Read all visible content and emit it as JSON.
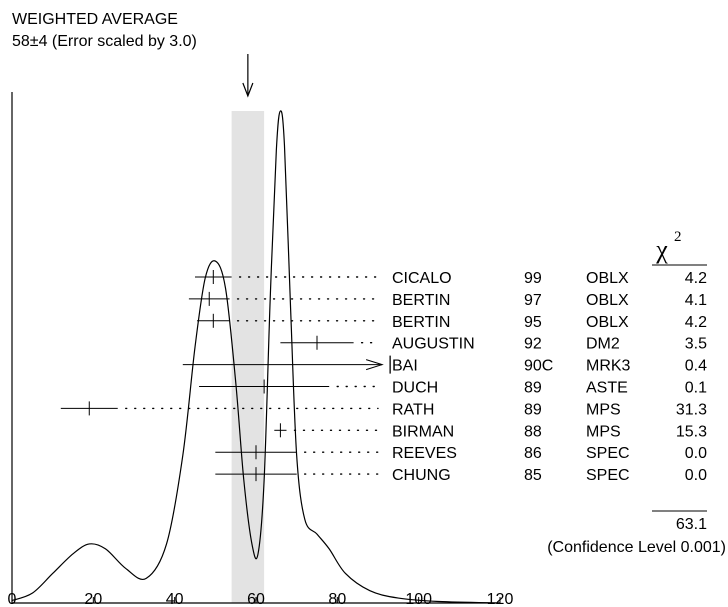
{
  "chart_data": {
    "type": "scatter",
    "title": "WEIGHTED AVERAGE",
    "subtitle": "58±4 (Error scaled by 3.0)",
    "weighted_average": {
      "value": 58,
      "error": 4
    },
    "xlim": [
      0,
      120
    ],
    "x_ticks": [
      0,
      20,
      40,
      60,
      80,
      100,
      120
    ],
    "chi2_header": "χ",
    "chi2_header_sup": "2",
    "measurements": [
      {
        "author": "CICALO",
        "year": "99",
        "tech": "OBLX",
        "value": 49.5,
        "error": 4.5,
        "chi2": "4.2"
      },
      {
        "author": "BERTIN",
        "year": "97",
        "tech": "OBLX",
        "value": 48.5,
        "error": 5,
        "chi2": "4.1"
      },
      {
        "author": "BERTIN",
        "year": "95",
        "tech": "OBLX",
        "value": 49.5,
        "error": 4,
        "chi2": "4.2"
      },
      {
        "author": "AUGUSTIN",
        "year": "92",
        "tech": "DM2",
        "value": 75,
        "error": 9,
        "chi2": "3.5"
      },
      {
        "author": "BAI",
        "year": "90C",
        "tech": "MRK3",
        "value": 42,
        "upper_limit": 92,
        "chi2": "0.4"
      },
      {
        "author": "DUCH",
        "year": "89",
        "tech": "ASTE",
        "value": 62,
        "error": 16,
        "chi2": "0.1"
      },
      {
        "author": "RATH",
        "year": "89",
        "tech": "MPS",
        "value": 19,
        "error": 7,
        "chi2": "31.3"
      },
      {
        "author": "BIRMAN",
        "year": "88",
        "tech": "MPS",
        "value": 66,
        "error": 1.5,
        "chi2": "15.3"
      },
      {
        "author": "REEVES",
        "year": "86",
        "tech": "SPEC",
        "value": 60,
        "error": 10,
        "chi2": "0.0"
      },
      {
        "author": "CHUNG",
        "year": "85",
        "tech": "SPEC",
        "value": 60,
        "error": 10,
        "chi2": "0.0"
      }
    ],
    "chi2_total": "63.1",
    "confidence_level": "(Confidence Level  0.001)",
    "ideogram_curve": [
      [
        0,
        0.005
      ],
      [
        5,
        0.02
      ],
      [
        10,
        0.06
      ],
      [
        15,
        0.1
      ],
      [
        19,
        0.12
      ],
      [
        23,
        0.11
      ],
      [
        28,
        0.07
      ],
      [
        33,
        0.05
      ],
      [
        38,
        0.12
      ],
      [
        42,
        0.3
      ],
      [
        45,
        0.52
      ],
      [
        47.5,
        0.66
      ],
      [
        50,
        0.695
      ],
      [
        52.5,
        0.64
      ],
      [
        55,
        0.45
      ],
      [
        57,
        0.25
      ],
      [
        59,
        0.12
      ],
      [
        60.5,
        0.1
      ],
      [
        62,
        0.25
      ],
      [
        63.5,
        0.62
      ],
      [
        65,
        0.92
      ],
      [
        66,
        1.0
      ],
      [
        67,
        0.93
      ],
      [
        68.5,
        0.6
      ],
      [
        70,
        0.3
      ],
      [
        72,
        0.17
      ],
      [
        75,
        0.14
      ],
      [
        78,
        0.11
      ],
      [
        82,
        0.06
      ],
      [
        88,
        0.025
      ],
      [
        95,
        0.01
      ],
      [
        105,
        0.003
      ],
      [
        120,
        0.0
      ]
    ]
  }
}
